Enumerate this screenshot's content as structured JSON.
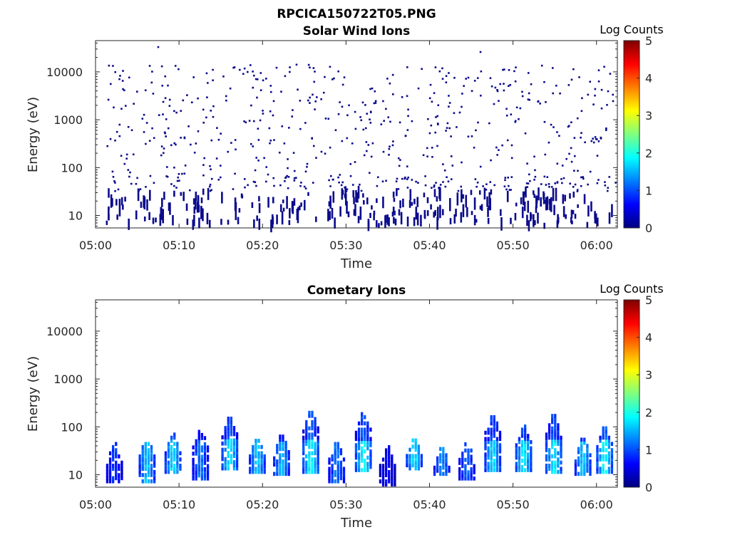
{
  "figure": {
    "title": "RPCICA150722T05.PNG"
  },
  "colormap": {
    "stops": [
      "#00007f",
      "#0000ff",
      "#007fff",
      "#00ffff",
      "#7fff7f",
      "#ffff00",
      "#ff7f00",
      "#ff0000",
      "#7f0000"
    ]
  },
  "chart_data": [
    {
      "type": "heatmap",
      "title": "Solar Wind Ions",
      "xlabel": "Time",
      "ylabel": "Energy (eV)",
      "x_ticks": [
        "05:00",
        "05:10",
        "05:20",
        "05:30",
        "05:40",
        "05:50",
        "06:00"
      ],
      "x_range_minutes": [
        0,
        62.5
      ],
      "y_scale": "log",
      "y_ticks": [
        "10",
        "100",
        "1000",
        "10000"
      ],
      "ylim": [
        5.5,
        45000
      ],
      "colorbar": {
        "label": "Log Counts",
        "ticks": [
          "0",
          "1",
          "2",
          "3",
          "4",
          "5"
        ],
        "range": [
          0,
          5
        ]
      },
      "description": "Sparse single-count detections across 10 eV - 30 keV, densest below 100 eV; all values near log count 0."
    },
    {
      "type": "heatmap",
      "title": "Cometary Ions",
      "xlabel": "Time",
      "ylabel": "Energy (eV)",
      "x_ticks": [
        "05:00",
        "05:10",
        "05:20",
        "05:30",
        "05:40",
        "05:50",
        "06:00"
      ],
      "x_range_minutes": [
        0,
        62.5
      ],
      "y_scale": "log",
      "y_ticks": [
        "10",
        "100",
        "1000",
        "10000"
      ],
      "ylim": [
        5.5,
        45000
      ],
      "colorbar": {
        "label": "Log Counts",
        "ticks": [
          "0",
          "1",
          "2",
          "3",
          "4",
          "5"
        ],
        "range": [
          0,
          5
        ]
      },
      "bursts": [
        {
          "t": 2.3,
          "e_lo": 7,
          "e_hi": 45,
          "peak": 0.9
        },
        {
          "t": 6.2,
          "e_lo": 7,
          "e_hi": 60,
          "peak": 1.6
        },
        {
          "t": 9.3,
          "e_lo": 11,
          "e_hi": 70,
          "peak": 1.7
        },
        {
          "t": 12.6,
          "e_lo": 8,
          "e_hi": 90,
          "peak": 1.2
        },
        {
          "t": 16.1,
          "e_lo": 13,
          "e_hi": 160,
          "peak": 1.8
        },
        {
          "t": 19.4,
          "e_lo": 11,
          "e_hi": 60,
          "peak": 1.6
        },
        {
          "t": 22.3,
          "e_lo": 10,
          "e_hi": 70,
          "peak": 1.5
        },
        {
          "t": 25.8,
          "e_lo": 11,
          "e_hi": 220,
          "peak": 1.9
        },
        {
          "t": 28.9,
          "e_lo": 7,
          "e_hi": 50,
          "peak": 1.2
        },
        {
          "t": 32.1,
          "e_lo": 12,
          "e_hi": 200,
          "peak": 1.9
        },
        {
          "t": 35.0,
          "e_lo": 6,
          "e_hi": 40,
          "peak": 0.6
        },
        {
          "t": 38.2,
          "e_lo": 13,
          "e_hi": 60,
          "peak": 1.7
        },
        {
          "t": 41.5,
          "e_lo": 10,
          "e_hi": 40,
          "peak": 1.3
        },
        {
          "t": 44.5,
          "e_lo": 8,
          "e_hi": 50,
          "peak": 1.1
        },
        {
          "t": 47.6,
          "e_lo": 12,
          "e_hi": 180,
          "peak": 1.7
        },
        {
          "t": 51.3,
          "e_lo": 12,
          "e_hi": 110,
          "peak": 1.8
        },
        {
          "t": 54.9,
          "e_lo": 11,
          "e_hi": 180,
          "peak": 1.8
        },
        {
          "t": 58.4,
          "e_lo": 10,
          "e_hi": 60,
          "peak": 1.6
        },
        {
          "t": 61.0,
          "e_lo": 11,
          "e_hi": 100,
          "peak": 1.9
        }
      ]
    }
  ]
}
